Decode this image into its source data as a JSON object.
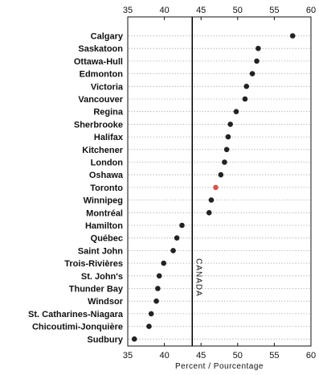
{
  "chart_data": {
    "type": "scatter",
    "orientation": "horizontal-dot-plot",
    "title": "",
    "xlabel": "Percent / Pourcentage",
    "ylabel": "",
    "xlim": [
      35,
      60
    ],
    "xticks": [
      35,
      40,
      45,
      50,
      55,
      60
    ],
    "grid": "dotted horizontal per category",
    "categories": [
      "Calgary",
      "Saskatoon",
      "Ottawa-Hull",
      "Edmonton",
      "Victoria",
      "Vancouver",
      "Regina",
      "Sherbrooke",
      "Halifax",
      "Kitchener",
      "London",
      "Oshawa",
      "Toronto",
      "Winnipeg",
      "Montréal",
      "Hamilton",
      "Québec",
      "Saint John",
      "Trois-Rivières",
      "St. John's",
      "Thunder Bay",
      "Windsor",
      "St. Catharines-Niagara",
      "Chicoutimi-Jonquière",
      "Sudbury"
    ],
    "values": [
      57.5,
      52.8,
      52.6,
      52.0,
      51.2,
      51.0,
      49.8,
      49.0,
      48.7,
      48.5,
      48.2,
      47.7,
      47.0,
      46.4,
      46.1,
      42.4,
      41.7,
      41.2,
      39.9,
      39.3,
      39.1,
      38.9,
      38.2,
      37.9,
      35.9
    ],
    "highlight": "Toronto",
    "reference_line": {
      "label": "CANADA",
      "value": 43.8
    },
    "colors": {
      "dot": "#222222",
      "highlight": "#d9534f",
      "reference": "#000000",
      "grid": "#9a9a9a"
    }
  }
}
